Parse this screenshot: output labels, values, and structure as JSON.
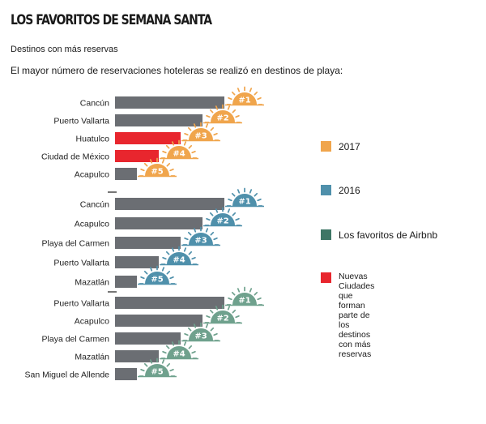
{
  "header": {
    "title": "LOS FAVORITOS DE SEMANA SANTA",
    "subtitle": "Destinos con más reservas",
    "description": "El mayor número de reservaciones hoteleras se realizó en destinos de playa:"
  },
  "legend": [
    {
      "label": "2017",
      "color": "#f0a54c"
    },
    {
      "label": "2016",
      "color": "#4f90ab"
    },
    {
      "label": "Los favoritos de Airbnb",
      "color": "#3e7665"
    },
    {
      "label": "Nuevas Ciudades que forman\nparte de los destinos\ncon más reservas",
      "color": "#e8262e"
    }
  ],
  "chart_data": {
    "type": "bar",
    "orientation": "horizontal",
    "grid": false,
    "bar_colors": {
      "default": "#6b6e73",
      "new_city": "#e8262e"
    },
    "groups": [
      {
        "name": "2017",
        "badge_color": "#f0a54c",
        "items": [
          {
            "label": "Cancún",
            "rank": "#1",
            "value": 5,
            "new_city": false
          },
          {
            "label": "Puerto Vallarta",
            "rank": "#2",
            "value": 4,
            "new_city": false
          },
          {
            "label": "Huatulco",
            "rank": "#3",
            "value": 3,
            "new_city": true
          },
          {
            "label": "Ciudad de México",
            "rank": "#4",
            "value": 2,
            "new_city": true
          },
          {
            "label": "Acapulco",
            "rank": "#5",
            "value": 1,
            "new_city": false
          }
        ]
      },
      {
        "name": "2016",
        "badge_color": "#4f90ab",
        "items": [
          {
            "label": "Cancún",
            "rank": "#1",
            "value": 5,
            "new_city": false
          },
          {
            "label": "Acapulco",
            "rank": "#2",
            "value": 4,
            "new_city": false
          },
          {
            "label": "Playa del Carmen",
            "rank": "#3",
            "value": 3,
            "new_city": false
          },
          {
            "label": "Puerto Vallarta",
            "rank": "#4",
            "value": 2,
            "new_city": false
          },
          {
            "label": "Mazatlán",
            "rank": "#5",
            "value": 1,
            "new_city": false
          }
        ]
      },
      {
        "name": "Los favoritos de Airbnb",
        "badge_color": "#6fa18d",
        "items": [
          {
            "label": "Puerto Vallarta",
            "rank": "#1",
            "value": 5,
            "new_city": false
          },
          {
            "label": "Acapulco",
            "rank": "#2",
            "value": 4,
            "new_city": false
          },
          {
            "label": "Playa del Carmen",
            "rank": "#3",
            "value": 3,
            "new_city": false
          },
          {
            "label": "Mazatlán",
            "rank": "#4",
            "value": 2,
            "new_city": false
          },
          {
            "label": "San Miguel de Allende",
            "rank": "#5",
            "value": 1,
            "new_city": false
          }
        ]
      }
    ]
  }
}
